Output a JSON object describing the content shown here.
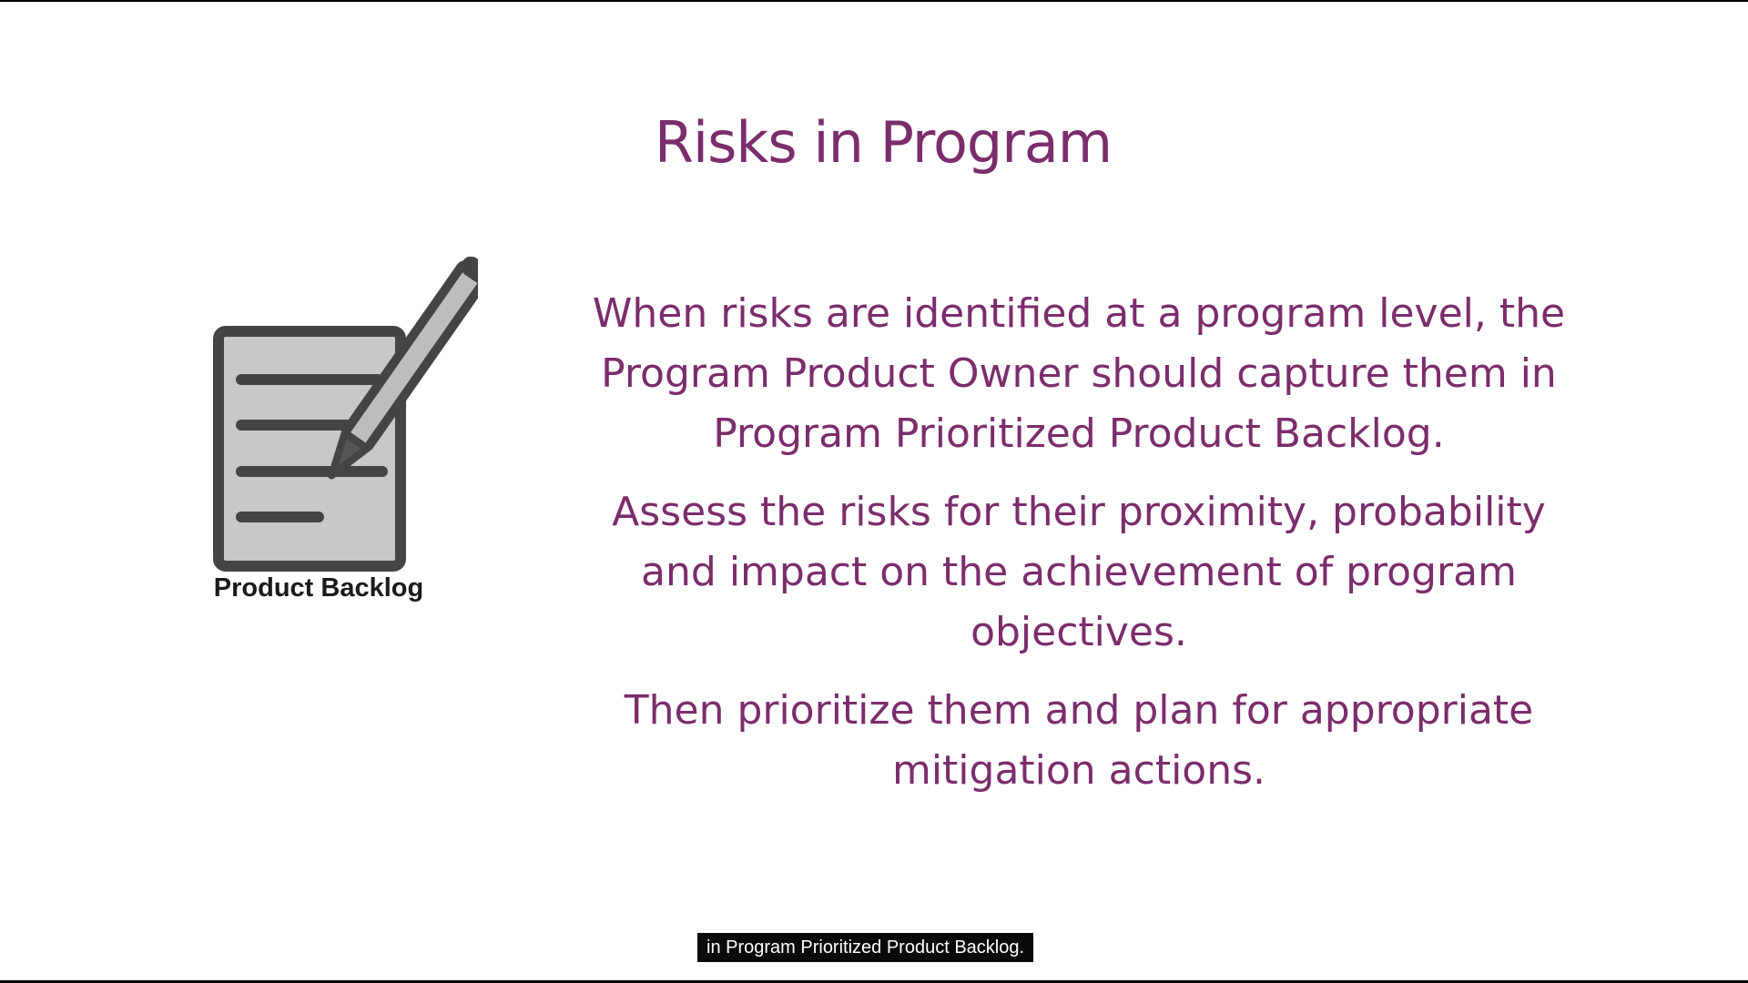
{
  "slide": {
    "title": "Risks in Program",
    "icon": {
      "name": "document-pen-icon",
      "caption": "Product Backlog"
    },
    "paragraphs": [
      "When risks are identified at a program level, the Program Product Owner should capture them in Program Prioritized Product Backlog.",
      "Assess the risks for their proximity, probability and impact on the achievement of program objectives.",
      "Then prioritize them and plan for appropriate mitigation actions."
    ]
  },
  "subtitle": {
    "text": "in Program Prioritized Product Backlog."
  },
  "colors": {
    "accent": "#7b2d6b",
    "icon_fill": "#c8c8c8",
    "icon_stroke": "#444444"
  }
}
